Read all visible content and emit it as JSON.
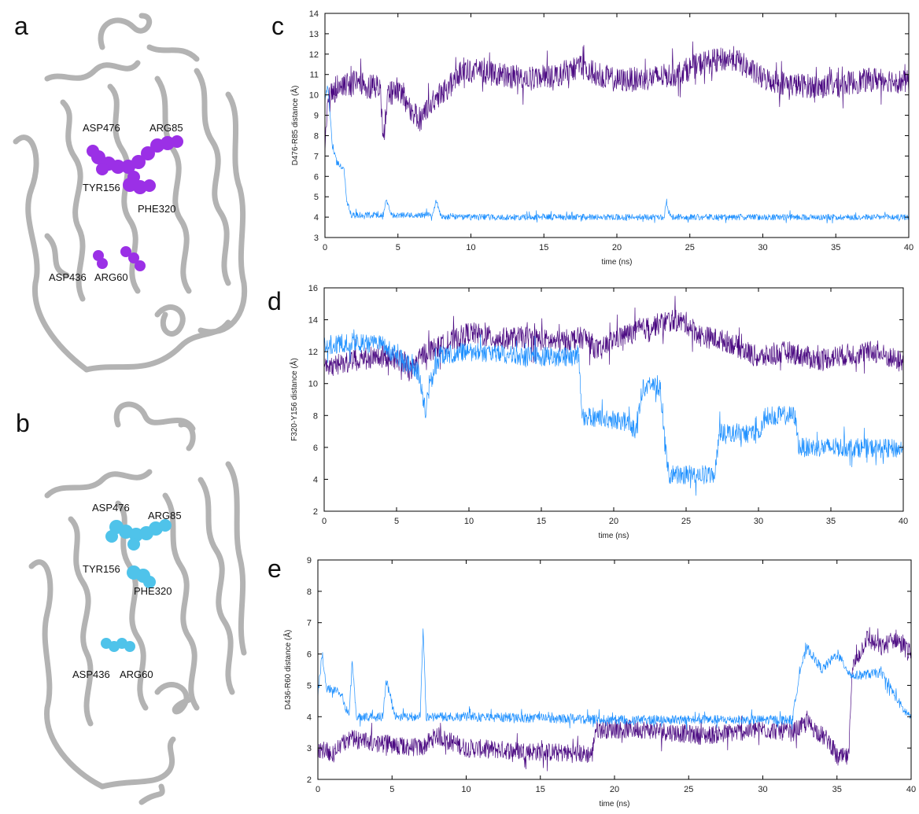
{
  "panels": {
    "a": "a",
    "b": "b",
    "c": "c",
    "d": "d",
    "e": "e"
  },
  "structures": [
    {
      "panel": "a",
      "sphere_color": "#9b30e6",
      "labels": [
        "ASP476",
        "ARG85",
        "TYR156",
        "PHE320",
        "ASP436",
        "ARG60"
      ]
    },
    {
      "panel": "b",
      "sphere_color": "#4fc3ea",
      "labels": [
        "ASP476",
        "ARG85",
        "TYR156",
        "PHE320",
        "ASP436",
        "ARG60"
      ]
    }
  ],
  "chart_data": [
    {
      "panel": "c",
      "type": "line",
      "xlabel": "time (ns)",
      "ylabel": "D476-R85 distance (Å)",
      "xlim": [
        0,
        40
      ],
      "ylim": [
        3,
        14
      ],
      "xticks": [
        0,
        5,
        10,
        15,
        20,
        25,
        30,
        35,
        40
      ],
      "yticks": [
        3,
        4,
        5,
        6,
        7,
        8,
        9,
        10,
        11,
        12,
        13,
        14
      ],
      "grid": false,
      "series": [
        {
          "color": "#4b0a82",
          "noise": 0.6,
          "points": [
            [
              0,
              7.5
            ],
            [
              0.2,
              9.8
            ],
            [
              1,
              10.5
            ],
            [
              2,
              10.6
            ],
            [
              3,
              10.4
            ],
            [
              3.8,
              10.4
            ],
            [
              4,
              7.8
            ],
            [
              4.3,
              10
            ],
            [
              5,
              10.3
            ],
            [
              6,
              9.2
            ],
            [
              6.5,
              8.8
            ],
            [
              7.5,
              9.8
            ],
            [
              8.5,
              10.4
            ],
            [
              9.5,
              11.3
            ],
            [
              10,
              11.2
            ],
            [
              12,
              11
            ],
            [
              14,
              10.8
            ],
            [
              16,
              11
            ],
            [
              17.5,
              11.4
            ],
            [
              18,
              11.2
            ],
            [
              20,
              10.7
            ],
            [
              22,
              10.8
            ],
            [
              24,
              11
            ],
            [
              26,
              11.6
            ],
            [
              28,
              11.8
            ],
            [
              30,
              10.8
            ],
            [
              32,
              10.5
            ],
            [
              34,
              10.4
            ],
            [
              36,
              10.6
            ],
            [
              38,
              10.8
            ],
            [
              40,
              10.6
            ]
          ]
        },
        {
          "color": "#1e90ff",
          "noise": 0.15,
          "points": [
            [
              0,
              9.8
            ],
            [
              0.2,
              10.5
            ],
            [
              0.5,
              7.5
            ],
            [
              0.8,
              6.7
            ],
            [
              1.3,
              6.4
            ],
            [
              1.5,
              4.8
            ],
            [
              1.8,
              4.1
            ],
            [
              4,
              4.1
            ],
            [
              4.2,
              4.9
            ],
            [
              4.5,
              4.1
            ],
            [
              7.4,
              4.1
            ],
            [
              7.6,
              4.8
            ],
            [
              8,
              4.0
            ],
            [
              23.2,
              4.0
            ],
            [
              23.4,
              4.6
            ],
            [
              23.7,
              4.0
            ],
            [
              40,
              4.0
            ]
          ]
        }
      ]
    },
    {
      "panel": "d",
      "type": "line",
      "xlabel": "time (ns)",
      "ylabel": "F320-Y156 distance (Å)",
      "xlim": [
        0,
        40
      ],
      "ylim": [
        2,
        16
      ],
      "xticks": [
        0,
        5,
        10,
        15,
        20,
        25,
        30,
        35,
        40
      ],
      "yticks": [
        2,
        4,
        6,
        8,
        10,
        12,
        14,
        16
      ],
      "grid": false,
      "series": [
        {
          "color": "#4b0a82",
          "noise": 0.7,
          "points": [
            [
              0,
              11
            ],
            [
              2,
              11.4
            ],
            [
              4,
              11.8
            ],
            [
              5.5,
              11.4
            ],
            [
              6,
              10.8
            ],
            [
              7,
              12
            ],
            [
              8,
              12.3
            ],
            [
              10,
              13.2
            ],
            [
              12,
              12.8
            ],
            [
              14,
              12.9
            ],
            [
              16,
              12.6
            ],
            [
              18,
              12.9
            ],
            [
              19,
              12
            ],
            [
              20,
              12.8
            ],
            [
              22,
              13.4
            ],
            [
              24,
              14
            ],
            [
              25,
              13.8
            ],
            [
              26,
              13
            ],
            [
              28,
              12.6
            ],
            [
              30,
              11.6
            ],
            [
              32,
              12
            ],
            [
              34,
              11.5
            ],
            [
              36,
              11.8
            ],
            [
              38,
              12
            ],
            [
              40,
              11.3
            ]
          ]
        },
        {
          "color": "#1e90ff",
          "noise": 0.6,
          "points": [
            [
              0,
              12.4
            ],
            [
              2,
              12.6
            ],
            [
              4,
              12.4
            ],
            [
              5.5,
              11.4
            ],
            [
              6.5,
              10.8
            ],
            [
              7,
              8.3
            ],
            [
              7.3,
              10
            ],
            [
              8,
              11.8
            ],
            [
              10,
              12
            ],
            [
              14,
              11.7
            ],
            [
              17.6,
              11.7
            ],
            [
              17.8,
              8
            ],
            [
              21,
              7.6
            ],
            [
              21.5,
              7
            ],
            [
              22,
              9.8
            ],
            [
              23.2,
              9.8
            ],
            [
              23.5,
              6.5
            ],
            [
              23.8,
              4.3
            ],
            [
              27,
              4.3
            ],
            [
              27.3,
              7
            ],
            [
              30,
              6.8
            ],
            [
              30.5,
              8
            ],
            [
              32.5,
              8
            ],
            [
              32.8,
              6
            ],
            [
              36,
              6
            ],
            [
              40,
              5.9
            ]
          ]
        }
      ]
    },
    {
      "panel": "e",
      "type": "line",
      "xlabel": "time (ns)",
      "ylabel": "D436-R60 distance (Å)",
      "xlim": [
        0,
        40
      ],
      "ylim": [
        2,
        9
      ],
      "xticks": [
        0,
        5,
        10,
        15,
        20,
        25,
        30,
        35,
        40
      ],
      "yticks": [
        2,
        3,
        4,
        5,
        6,
        7,
        8,
        9
      ],
      "grid": false,
      "series": [
        {
          "color": "#4b0a82",
          "noise": 0.3,
          "points": [
            [
              0,
              3
            ],
            [
              1,
              2.8
            ],
            [
              2,
              3.3
            ],
            [
              5,
              3.1
            ],
            [
              7,
              3.0
            ],
            [
              8,
              3.4
            ],
            [
              10,
              3.0
            ],
            [
              18.5,
              2.8
            ],
            [
              18.7,
              3.6
            ],
            [
              22,
              3.6
            ],
            [
              26,
              3.4
            ],
            [
              28,
              3.5
            ],
            [
              30,
              3.6
            ],
            [
              32,
              3.5
            ],
            [
              33,
              3.8
            ],
            [
              34.5,
              3.2
            ],
            [
              35,
              2.7
            ],
            [
              35.8,
              2.7
            ],
            [
              36,
              5.5
            ],
            [
              37,
              6.5
            ],
            [
              38,
              6.2
            ],
            [
              39,
              6.5
            ],
            [
              40,
              6.0
            ]
          ]
        },
        {
          "color": "#1e90ff",
          "noise": 0.15,
          "points": [
            [
              0,
              4.7
            ],
            [
              0.3,
              6
            ],
            [
              0.6,
              4.9
            ],
            [
              1.5,
              4.8
            ],
            [
              2.1,
              4.0
            ],
            [
              2.3,
              5.8
            ],
            [
              2.6,
              4.0
            ],
            [
              4.4,
              4.0
            ],
            [
              4.6,
              5.2
            ],
            [
              5.2,
              4.0
            ],
            [
              6.9,
              4.0
            ],
            [
              7.1,
              6.8
            ],
            [
              7.3,
              4.0
            ],
            [
              10,
              4.0
            ],
            [
              20,
              3.9
            ],
            [
              28,
              3.9
            ],
            [
              32,
              3.9
            ],
            [
              32.5,
              5.5
            ],
            [
              33,
              6.2
            ],
            [
              34,
              5.5
            ],
            [
              35,
              6
            ],
            [
              36,
              5.3
            ],
            [
              38,
              5.4
            ],
            [
              39.5,
              4.2
            ],
            [
              40,
              4.0
            ]
          ]
        }
      ]
    }
  ]
}
